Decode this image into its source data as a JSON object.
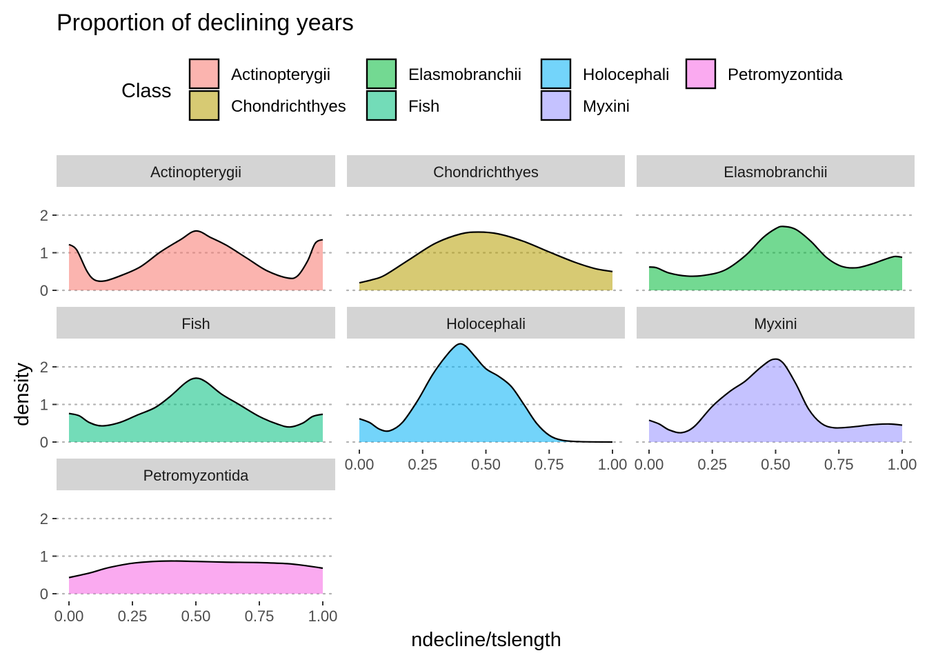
{
  "chart_data": {
    "type": "area",
    "title": "Proportion of declining years",
    "xlabel": "ndecline/tslength",
    "ylabel": "density",
    "xlim": [
      0,
      1
    ],
    "ylim": [
      0,
      2.45
    ],
    "x_ticks": [
      0,
      0.25,
      0.5,
      0.75,
      1
    ],
    "x_tick_labels": [
      "0.00",
      "0.25",
      "0.50",
      "0.75",
      "1.00"
    ],
    "y_ticks": [
      0,
      1,
      2
    ],
    "y_tick_labels": [
      "0",
      "1",
      "2"
    ],
    "grid": "horizontal-dotted",
    "legend": {
      "title": "Class",
      "position": "top",
      "entries": [
        "Actinopterygii",
        "Chondrichthyes",
        "Elasmobranchii",
        "Fish",
        "Holocephali",
        "Myxini",
        "Petromyzontida"
      ]
    },
    "facets": [
      {
        "name": "Actinopterygii",
        "color": "#F8766D",
        "points": [
          [
            0,
            1.22
          ],
          [
            0.03,
            1.08
          ],
          [
            0.07,
            0.52
          ],
          [
            0.1,
            0.28
          ],
          [
            0.14,
            0.25
          ],
          [
            0.2,
            0.38
          ],
          [
            0.28,
            0.62
          ],
          [
            0.36,
            1.02
          ],
          [
            0.44,
            1.35
          ],
          [
            0.5,
            1.58
          ],
          [
            0.56,
            1.4
          ],
          [
            0.62,
            1.2
          ],
          [
            0.7,
            0.86
          ],
          [
            0.78,
            0.52
          ],
          [
            0.86,
            0.33
          ],
          [
            0.9,
            0.38
          ],
          [
            0.94,
            0.78
          ],
          [
            0.97,
            1.25
          ],
          [
            1.0,
            1.35
          ]
        ]
      },
      {
        "name": "Chondrichthyes",
        "color": "#B79F00",
        "points": [
          [
            0,
            0.2
          ],
          [
            0.05,
            0.28
          ],
          [
            0.1,
            0.4
          ],
          [
            0.2,
            0.83
          ],
          [
            0.3,
            1.25
          ],
          [
            0.4,
            1.5
          ],
          [
            0.47,
            1.55
          ],
          [
            0.55,
            1.5
          ],
          [
            0.65,
            1.3
          ],
          [
            0.75,
            1.02
          ],
          [
            0.85,
            0.75
          ],
          [
            0.93,
            0.58
          ],
          [
            1.0,
            0.5
          ]
        ]
      },
      {
        "name": "Elasmobranchii",
        "color": "#00BA38",
        "points": [
          [
            0,
            0.62
          ],
          [
            0.03,
            0.6
          ],
          [
            0.08,
            0.46
          ],
          [
            0.15,
            0.38
          ],
          [
            0.22,
            0.4
          ],
          [
            0.3,
            0.54
          ],
          [
            0.38,
            0.92
          ],
          [
            0.45,
            1.4
          ],
          [
            0.5,
            1.64
          ],
          [
            0.53,
            1.7
          ],
          [
            0.58,
            1.62
          ],
          [
            0.64,
            1.3
          ],
          [
            0.7,
            0.88
          ],
          [
            0.76,
            0.64
          ],
          [
            0.82,
            0.6
          ],
          [
            0.88,
            0.7
          ],
          [
            0.93,
            0.82
          ],
          [
            0.97,
            0.9
          ],
          [
            1.0,
            0.88
          ]
        ]
      },
      {
        "name": "Fish",
        "color": "#00BF7D",
        "points": [
          [
            0,
            0.76
          ],
          [
            0.04,
            0.7
          ],
          [
            0.08,
            0.52
          ],
          [
            0.13,
            0.43
          ],
          [
            0.2,
            0.52
          ],
          [
            0.27,
            0.72
          ],
          [
            0.34,
            0.92
          ],
          [
            0.4,
            1.22
          ],
          [
            0.46,
            1.58
          ],
          [
            0.5,
            1.7
          ],
          [
            0.54,
            1.6
          ],
          [
            0.6,
            1.28
          ],
          [
            0.67,
            1.0
          ],
          [
            0.75,
            0.68
          ],
          [
            0.82,
            0.48
          ],
          [
            0.87,
            0.4
          ],
          [
            0.92,
            0.5
          ],
          [
            0.96,
            0.68
          ],
          [
            1.0,
            0.74
          ]
        ]
      },
      {
        "name": "Holocephali",
        "color": "#00B0F6",
        "points": [
          [
            0,
            0.62
          ],
          [
            0.04,
            0.52
          ],
          [
            0.08,
            0.34
          ],
          [
            0.12,
            0.3
          ],
          [
            0.17,
            0.52
          ],
          [
            0.23,
            1.1
          ],
          [
            0.29,
            1.8
          ],
          [
            0.35,
            2.35
          ],
          [
            0.39,
            2.6
          ],
          [
            0.42,
            2.55
          ],
          [
            0.46,
            2.25
          ],
          [
            0.5,
            1.95
          ],
          [
            0.55,
            1.75
          ],
          [
            0.6,
            1.48
          ],
          [
            0.65,
            1.0
          ],
          [
            0.7,
            0.5
          ],
          [
            0.75,
            0.18
          ],
          [
            0.8,
            0.05
          ],
          [
            0.87,
            0.01
          ],
          [
            1.0,
            0.0
          ]
        ]
      },
      {
        "name": "Myxini",
        "color": "#9590FF",
        "points": [
          [
            0,
            0.58
          ],
          [
            0.04,
            0.48
          ],
          [
            0.08,
            0.32
          ],
          [
            0.13,
            0.25
          ],
          [
            0.18,
            0.42
          ],
          [
            0.25,
            0.95
          ],
          [
            0.32,
            1.35
          ],
          [
            0.38,
            1.62
          ],
          [
            0.44,
            1.98
          ],
          [
            0.49,
            2.2
          ],
          [
            0.53,
            2.1
          ],
          [
            0.58,
            1.55
          ],
          [
            0.63,
            0.88
          ],
          [
            0.68,
            0.5
          ],
          [
            0.73,
            0.38
          ],
          [
            0.8,
            0.4
          ],
          [
            0.88,
            0.46
          ],
          [
            0.95,
            0.48
          ],
          [
            1.0,
            0.45
          ]
        ]
      },
      {
        "name": "Petromyzontida",
        "color": "#F564E3",
        "points": [
          [
            0,
            0.43
          ],
          [
            0.08,
            0.55
          ],
          [
            0.16,
            0.7
          ],
          [
            0.26,
            0.82
          ],
          [
            0.38,
            0.87
          ],
          [
            0.5,
            0.86
          ],
          [
            0.62,
            0.84
          ],
          [
            0.74,
            0.83
          ],
          [
            0.86,
            0.8
          ],
          [
            0.94,
            0.74
          ],
          [
            1.0,
            0.68
          ]
        ]
      }
    ]
  }
}
